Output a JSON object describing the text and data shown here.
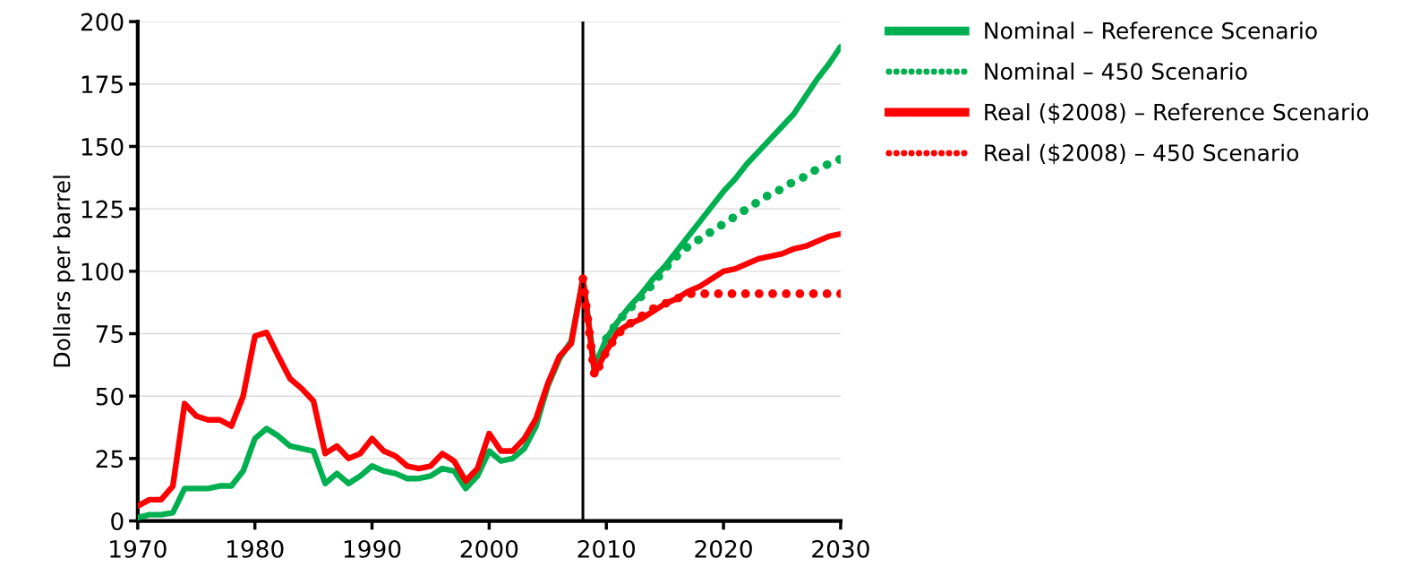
{
  "chart_data": {
    "type": "line",
    "ylabel": "Dollars per barrel",
    "xlim": [
      1970,
      2030
    ],
    "xticks": [
      1970,
      1980,
      1990,
      2000,
      2010,
      2020,
      2030
    ],
    "ylim": [
      0,
      200
    ],
    "yticks": [
      0,
      25,
      50,
      75,
      100,
      125,
      150,
      175,
      200
    ],
    "grid": "y",
    "legend": "right",
    "marker": "none",
    "ref_lines": [
      {
        "axis": "x",
        "value": 2008,
        "label": null,
        "color": "#000000"
      }
    ],
    "series": [
      {
        "name": "Nominal – Reference Scenario",
        "color": "#00b050",
        "line_style": "solid",
        "x": [
          1970,
          1971,
          1972,
          1973,
          1974,
          1975,
          1976,
          1977,
          1978,
          1979,
          1980,
          1981,
          1982,
          1983,
          1984,
          1985,
          1986,
          1987,
          1988,
          1989,
          1990,
          1991,
          1992,
          1993,
          1994,
          1995,
          1996,
          1997,
          1998,
          1999,
          2000,
          2001,
          2002,
          2003,
          2004,
          2005,
          2006,
          2007,
          2008,
          2009,
          2010,
          2011,
          2012,
          2013,
          2014,
          2015,
          2016,
          2017,
          2018,
          2019,
          2020,
          2021,
          2022,
          2023,
          2024,
          2025,
          2026,
          2027,
          2028,
          2029,
          2030
        ],
        "values": [
          1.3,
          2.5,
          2.5,
          3.3,
          13,
          13,
          13,
          14,
          14,
          20,
          33,
          37,
          34,
          30,
          29,
          28,
          15,
          19,
          15,
          18,
          22,
          20,
          19,
          17,
          17,
          18,
          21,
          20,
          13,
          18,
          28,
          24,
          25,
          29,
          38,
          54,
          65,
          72,
          97,
          62,
          73,
          80,
          86,
          91,
          97,
          102,
          108,
          114,
          120,
          126,
          132,
          137,
          143,
          148,
          153,
          158,
          163,
          170,
          177,
          183,
          190
        ]
      },
      {
        "name": "Nominal – 450 Scenario",
        "color": "#00b050",
        "line_style": "dotted",
        "x": [
          2010,
          2011,
          2012,
          2013,
          2014,
          2015,
          2016,
          2017,
          2018,
          2019,
          2020,
          2021,
          2022,
          2023,
          2024,
          2025,
          2026,
          2027,
          2028,
          2029,
          2030
        ],
        "values": [
          73,
          80,
          85,
          90,
          95,
          101,
          106,
          110,
          113,
          116,
          119,
          122,
          125,
          128,
          131,
          133,
          136,
          138,
          141,
          143,
          145
        ]
      },
      {
        "name": "Real ($2008) – Reference Scenario",
        "color": "#ff0000",
        "line_style": "solid",
        "x": [
          1970,
          1971,
          1972,
          1973,
          1974,
          1975,
          1976,
          1977,
          1978,
          1979,
          1980,
          1981,
          1982,
          1983,
          1984,
          1985,
          1986,
          1987,
          1988,
          1989,
          1990,
          1991,
          1992,
          1993,
          1994,
          1995,
          1996,
          1997,
          1998,
          1999,
          2000,
          2001,
          2002,
          2003,
          2004,
          2005,
          2006,
          2007,
          2008,
          2009,
          2010,
          2011,
          2012,
          2013,
          2014,
          2015,
          2016,
          2017,
          2018,
          2019,
          2020,
          2021,
          2022,
          2023,
          2024,
          2025,
          2026,
          2027,
          2028,
          2029,
          2030
        ],
        "values": [
          6,
          8.5,
          8.5,
          14,
          47,
          42,
          40.5,
          40.5,
          38,
          50,
          74,
          75.5,
          66,
          57,
          53,
          48,
          27,
          30,
          25,
          27,
          33,
          28,
          26,
          22,
          21,
          22,
          27,
          24,
          16,
          21,
          35,
          28,
          28,
          33,
          41,
          55,
          66,
          71,
          97,
          59,
          68,
          76,
          79,
          81,
          84,
          87,
          89,
          92,
          94,
          97,
          100,
          101,
          103,
          105,
          106,
          107,
          109,
          110,
          112,
          114,
          115
        ]
      },
      {
        "name": "Real ($2008) – 450 Scenario",
        "color": "#ff0000",
        "line_style": "dotted",
        "x": [
          2008,
          2009,
          2010,
          2011,
          2012,
          2013,
          2014,
          2015,
          2016,
          2017,
          2018,
          2019,
          2020,
          2021,
          2022,
          2023,
          2024,
          2025,
          2026,
          2027,
          2028,
          2029,
          2030
        ],
        "values": [
          97,
          58,
          68,
          75,
          79,
          82,
          85,
          87,
          89,
          91,
          91,
          91,
          91,
          91,
          91,
          91,
          91,
          91,
          91,
          91,
          91,
          91,
          91
        ]
      }
    ]
  }
}
